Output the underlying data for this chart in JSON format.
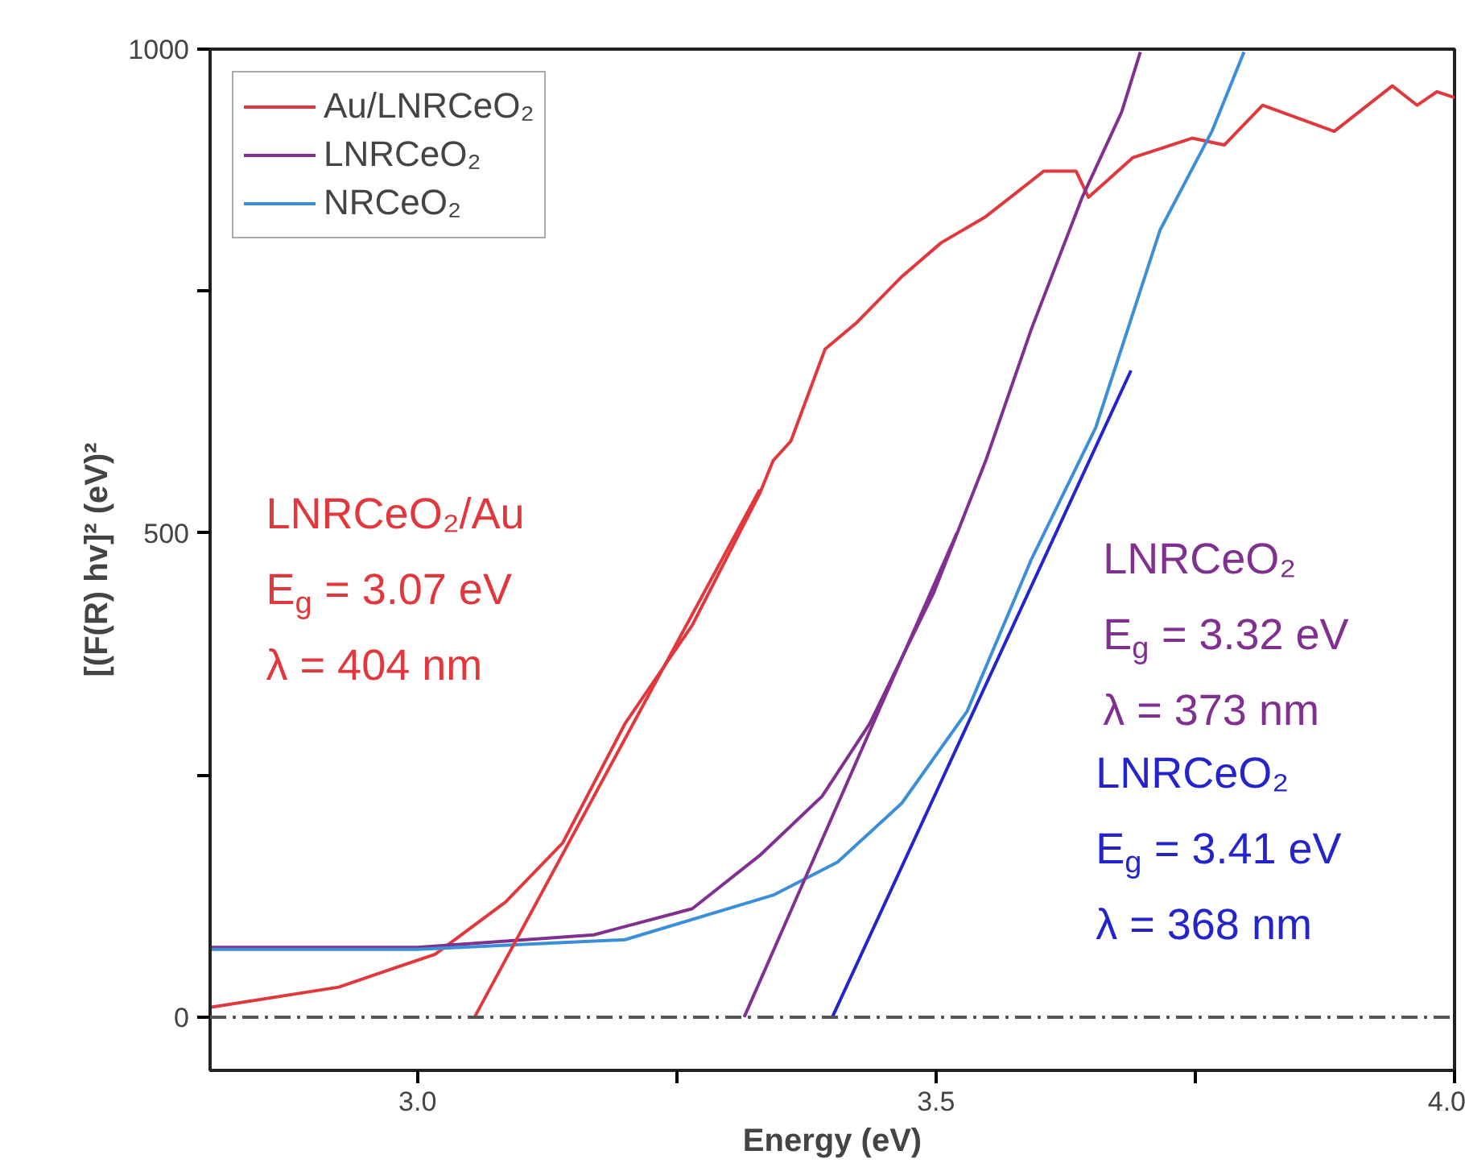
{
  "chart_data": {
    "type": "line",
    "xlabel": "Energy (eV)",
    "ylabel": "[(F(R) hv]² (eV)²",
    "xlim": [
      2.8,
      4.0
    ],
    "ylim": [
      -55,
      1000
    ],
    "xticks": [
      {
        "value": 3,
        "label": "3.0"
      },
      {
        "value": 3.25,
        "label": null
      },
      3.5,
      {
        "value": 3.75,
        "label": null
      },
      {
        "value": 4,
        "label": "4.0"
      }
    ],
    "yticks": [
      0,
      {
        "value": 250,
        "label": null
      },
      500,
      {
        "value": 750,
        "label": null
      },
      1000
    ],
    "grid": false,
    "legend": "top left",
    "marker": "none",
    "series": [
      {
        "name": "Au/LNRCeO₂",
        "color": "#e0383c",
        "x": [
          2.8,
          2.924,
          3.017,
          3.085,
          3.14,
          3.2,
          3.265,
          3.33,
          3.343,
          3.36,
          3.393,
          3.424,
          3.467,
          3.505,
          3.548,
          3.604,
          3.635,
          3.647,
          3.69,
          3.747,
          3.778,
          3.815,
          3.884,
          3.94,
          3.964,
          3.983,
          4.0
        ],
        "values": [
          10,
          31,
          65,
          119,
          180,
          303,
          405,
          541,
          575,
          595,
          690,
          718,
          765,
          800,
          827,
          874,
          874,
          847,
          888,
          908,
          901,
          942,
          915,
          962,
          942,
          956,
          950
        ]
      },
      {
        "name": "LNRCeO₂",
        "color": "#80308f",
        "x": [
          2.8,
          3.0,
          3.17,
          3.265,
          3.33,
          3.39,
          3.436,
          3.498,
          3.548,
          3.592,
          3.641,
          3.679,
          3.697
        ],
        "values": [
          72,
          72,
          85,
          112,
          167,
          228,
          303,
          439,
          575,
          711,
          847,
          935,
          997
        ]
      },
      {
        "name": "NRCeO₂",
        "color": "#3b8fd8",
        "x": [
          2.8,
          3.0,
          3.2,
          3.343,
          3.405,
          3.467,
          3.53,
          3.592,
          3.654,
          3.685,
          3.716,
          3.766,
          3.797
        ],
        "values": [
          70,
          70,
          80,
          126,
          160,
          221,
          316,
          473,
          609,
          711,
          813,
          915,
          997
        ]
      },
      {
        "color": "#e0383c",
        "x": [
          3.055,
          3.33
        ],
        "values": [
          0,
          545
        ]
      },
      {
        "color": "#80308f",
        "x": [
          3.315,
          3.52
        ],
        "values": [
          0,
          500
        ]
      },
      {
        "color": "#2424cc",
        "x": [
          3.4,
          3.688
        ],
        "values": [
          0,
          668
        ]
      }
    ],
    "ref_lines": [
      {
        "axis": "y",
        "value": 0,
        "color": "#555555",
        "line_style": "dashdot"
      }
    ],
    "annotations": [
      "LNRCeO₂/Au",
      "E$_{g}$ = 3.07 eV",
      "λ = 404 nm",
      "LNRCeO₂",
      "E$_{g}$ = 3.32 eV",
      "λ = 373 nm",
      "LNRCeO₂",
      "E$_{g}$ = 3.41 eV",
      "λ = 368 nm"
    ]
  }
}
